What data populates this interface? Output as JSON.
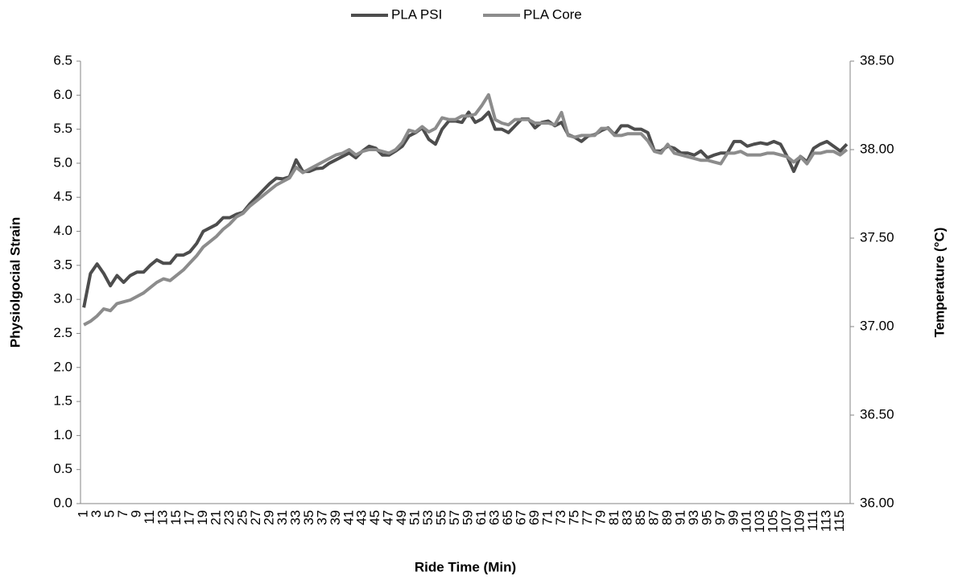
{
  "chart_data": {
    "type": "line",
    "x_label": "Ride Time (Min)",
    "y_label": "Physiolgocial Strain",
    "y2_label": "Temperature (°C)",
    "categories": [
      "1",
      null,
      "3",
      null,
      "5",
      null,
      "7",
      null,
      "9",
      null,
      "11",
      null,
      "13",
      null,
      "15",
      null,
      "17",
      null,
      "19",
      null,
      "21",
      null,
      "23",
      null,
      "25",
      null,
      "27",
      null,
      "29",
      null,
      "31",
      null,
      "33",
      null,
      "35",
      null,
      "37",
      null,
      "39",
      null,
      "41",
      null,
      "43",
      null,
      "45",
      null,
      "47",
      null,
      "49",
      null,
      "51",
      null,
      "53",
      null,
      "55",
      null,
      "57",
      null,
      "59",
      null,
      "61",
      null,
      "63",
      null,
      "65",
      null,
      "67",
      null,
      "69",
      null,
      "71",
      null,
      "73",
      null,
      "75",
      null,
      "77",
      null,
      "79",
      null,
      "81",
      null,
      "83",
      null,
      "85",
      null,
      "87",
      null,
      "89",
      null,
      "91",
      null,
      "93",
      null,
      "95",
      null,
      "97",
      null,
      "99",
      null,
      "101",
      null,
      "103",
      null,
      "105",
      null,
      "107",
      null,
      "109",
      null,
      "111",
      null,
      "113",
      null,
      "115",
      null
    ],
    "series": [
      {
        "name": "PLA PSI",
        "color": "#4d4d4d",
        "values": [
          2.88,
          3.38,
          3.52,
          3.38,
          3.2,
          3.35,
          3.25,
          3.35,
          3.4,
          3.4,
          3.5,
          3.58,
          3.53,
          3.53,
          3.65,
          3.65,
          3.7,
          3.82,
          4.0,
          4.05,
          4.1,
          4.2,
          4.2,
          4.25,
          4.28,
          4.4,
          4.5,
          4.6,
          4.7,
          4.78,
          4.77,
          4.8,
          5.05,
          4.88,
          4.88,
          4.92,
          4.93,
          5.0,
          5.05,
          5.1,
          5.15,
          5.08,
          5.18,
          5.25,
          5.22,
          5.12,
          5.12,
          5.18,
          5.25,
          5.4,
          5.45,
          5.52,
          5.35,
          5.28,
          5.5,
          5.62,
          5.62,
          5.6,
          5.75,
          5.6,
          5.65,
          5.75,
          5.5,
          5.5,
          5.45,
          5.55,
          5.65,
          5.65,
          5.52,
          5.6,
          5.62,
          5.55,
          5.6,
          5.42,
          5.38,
          5.32,
          5.4,
          5.42,
          5.48,
          5.52,
          5.42,
          5.55,
          5.55,
          5.5,
          5.5,
          5.45,
          5.18,
          5.18,
          5.25,
          5.22,
          5.15,
          5.15,
          5.12,
          5.18,
          5.08,
          5.12,
          5.15,
          5.15,
          5.32,
          5.32,
          5.25,
          5.28,
          5.3,
          5.28,
          5.32,
          5.28,
          5.1,
          4.88,
          5.1,
          5.02,
          5.22,
          5.28,
          5.32,
          5.25,
          5.18,
          5.28
        ]
      },
      {
        "name": "PLA Core",
        "color": "#8c8c8c",
        "axis": "y2",
        "values": [
          37.01,
          37.03,
          37.06,
          37.1,
          37.09,
          37.13,
          37.14,
          37.15,
          37.17,
          37.19,
          37.22,
          37.25,
          37.27,
          37.26,
          37.29,
          37.32,
          37.36,
          37.4,
          37.45,
          37.48,
          37.51,
          37.55,
          37.58,
          37.62,
          37.64,
          37.68,
          37.71,
          37.74,
          37.77,
          37.8,
          37.82,
          37.84,
          37.9,
          37.87,
          37.89,
          37.91,
          37.93,
          37.95,
          37.97,
          37.98,
          38.0,
          37.97,
          37.99,
          38.0,
          38.0,
          37.99,
          37.98,
          38.0,
          38.04,
          38.11,
          38.1,
          38.13,
          38.1,
          38.12,
          38.18,
          38.17,
          38.17,
          38.19,
          38.19,
          38.2,
          38.25,
          38.31,
          38.17,
          38.15,
          38.14,
          38.17,
          38.17,
          38.17,
          38.15,
          38.15,
          38.15,
          38.14,
          38.21,
          38.08,
          38.07,
          38.08,
          38.08,
          38.08,
          38.12,
          38.12,
          38.08,
          38.08,
          38.09,
          38.09,
          38.09,
          38.05,
          37.99,
          37.98,
          38.03,
          37.98,
          37.97,
          37.96,
          37.95,
          37.94,
          37.94,
          37.93,
          37.92,
          37.98,
          37.98,
          37.99,
          37.97,
          37.97,
          37.97,
          37.98,
          37.98,
          37.97,
          37.96,
          37.93,
          37.96,
          37.92,
          37.98,
          37.98,
          37.99,
          37.99,
          37.97,
          38.0
        ]
      }
    ],
    "ylim": [
      0,
      6.5
    ],
    "yticks": [
      {
        "value": 0,
        "label": "0.0"
      },
      0.5,
      {
        "value": 1,
        "label": "1.0"
      },
      1.5,
      {
        "value": 2,
        "label": "2.0"
      },
      2.5,
      {
        "value": 3,
        "label": "3.0"
      },
      3.5,
      {
        "value": 4,
        "label": "4.0"
      },
      4.5,
      {
        "value": 5,
        "label": "5.0"
      },
      5.5,
      {
        "value": 6,
        "label": "6.0"
      },
      6.5
    ],
    "y2lim": [
      36,
      38.5
    ],
    "y2ticks": [
      {
        "value": 36,
        "label": "36.00"
      },
      {
        "value": 36.5,
        "label": "36.50"
      },
      {
        "value": 37,
        "label": "37.00"
      },
      {
        "value": 37.5,
        "label": "37.50"
      },
      {
        "value": 38,
        "label": "38.00"
      },
      {
        "value": 38.5,
        "label": "38.50"
      }
    ],
    "legend": "top",
    "grid": false
  }
}
